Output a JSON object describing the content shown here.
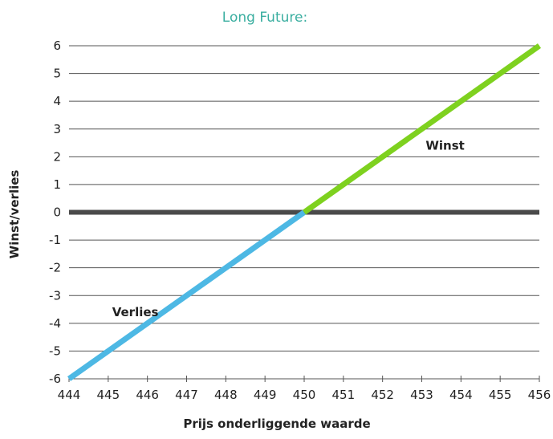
{
  "chart_data": {
    "type": "line",
    "title": "Long Future:",
    "xlabel": "Prijs onderliggende waarde",
    "ylabel": "Winst/verlies",
    "xlim": [
      444,
      456
    ],
    "ylim": [
      -6,
      6
    ],
    "x_ticks": [
      444,
      445,
      446,
      447,
      448,
      449,
      450,
      451,
      452,
      453,
      454,
      455,
      456
    ],
    "y_ticks": [
      -6,
      -5,
      -4,
      -3,
      -2,
      -1,
      0,
      1,
      2,
      3,
      4,
      5,
      6
    ],
    "grid": "horizontal",
    "series": [
      {
        "segment": "loss",
        "x": [
          444,
          450
        ],
        "y": [
          -6,
          0
        ],
        "color": "#4db8e4"
      },
      {
        "segment": "profit",
        "x": [
          450,
          456
        ],
        "y": [
          0,
          6
        ],
        "color": "#7ed11f"
      }
    ],
    "zero_line_color": "#4a4a4a",
    "annotations": [
      {
        "text": "Winst",
        "x": 453.1,
        "y": 2.4
      },
      {
        "text": "Verlies",
        "x": 445.1,
        "y": -3.6
      }
    ]
  }
}
